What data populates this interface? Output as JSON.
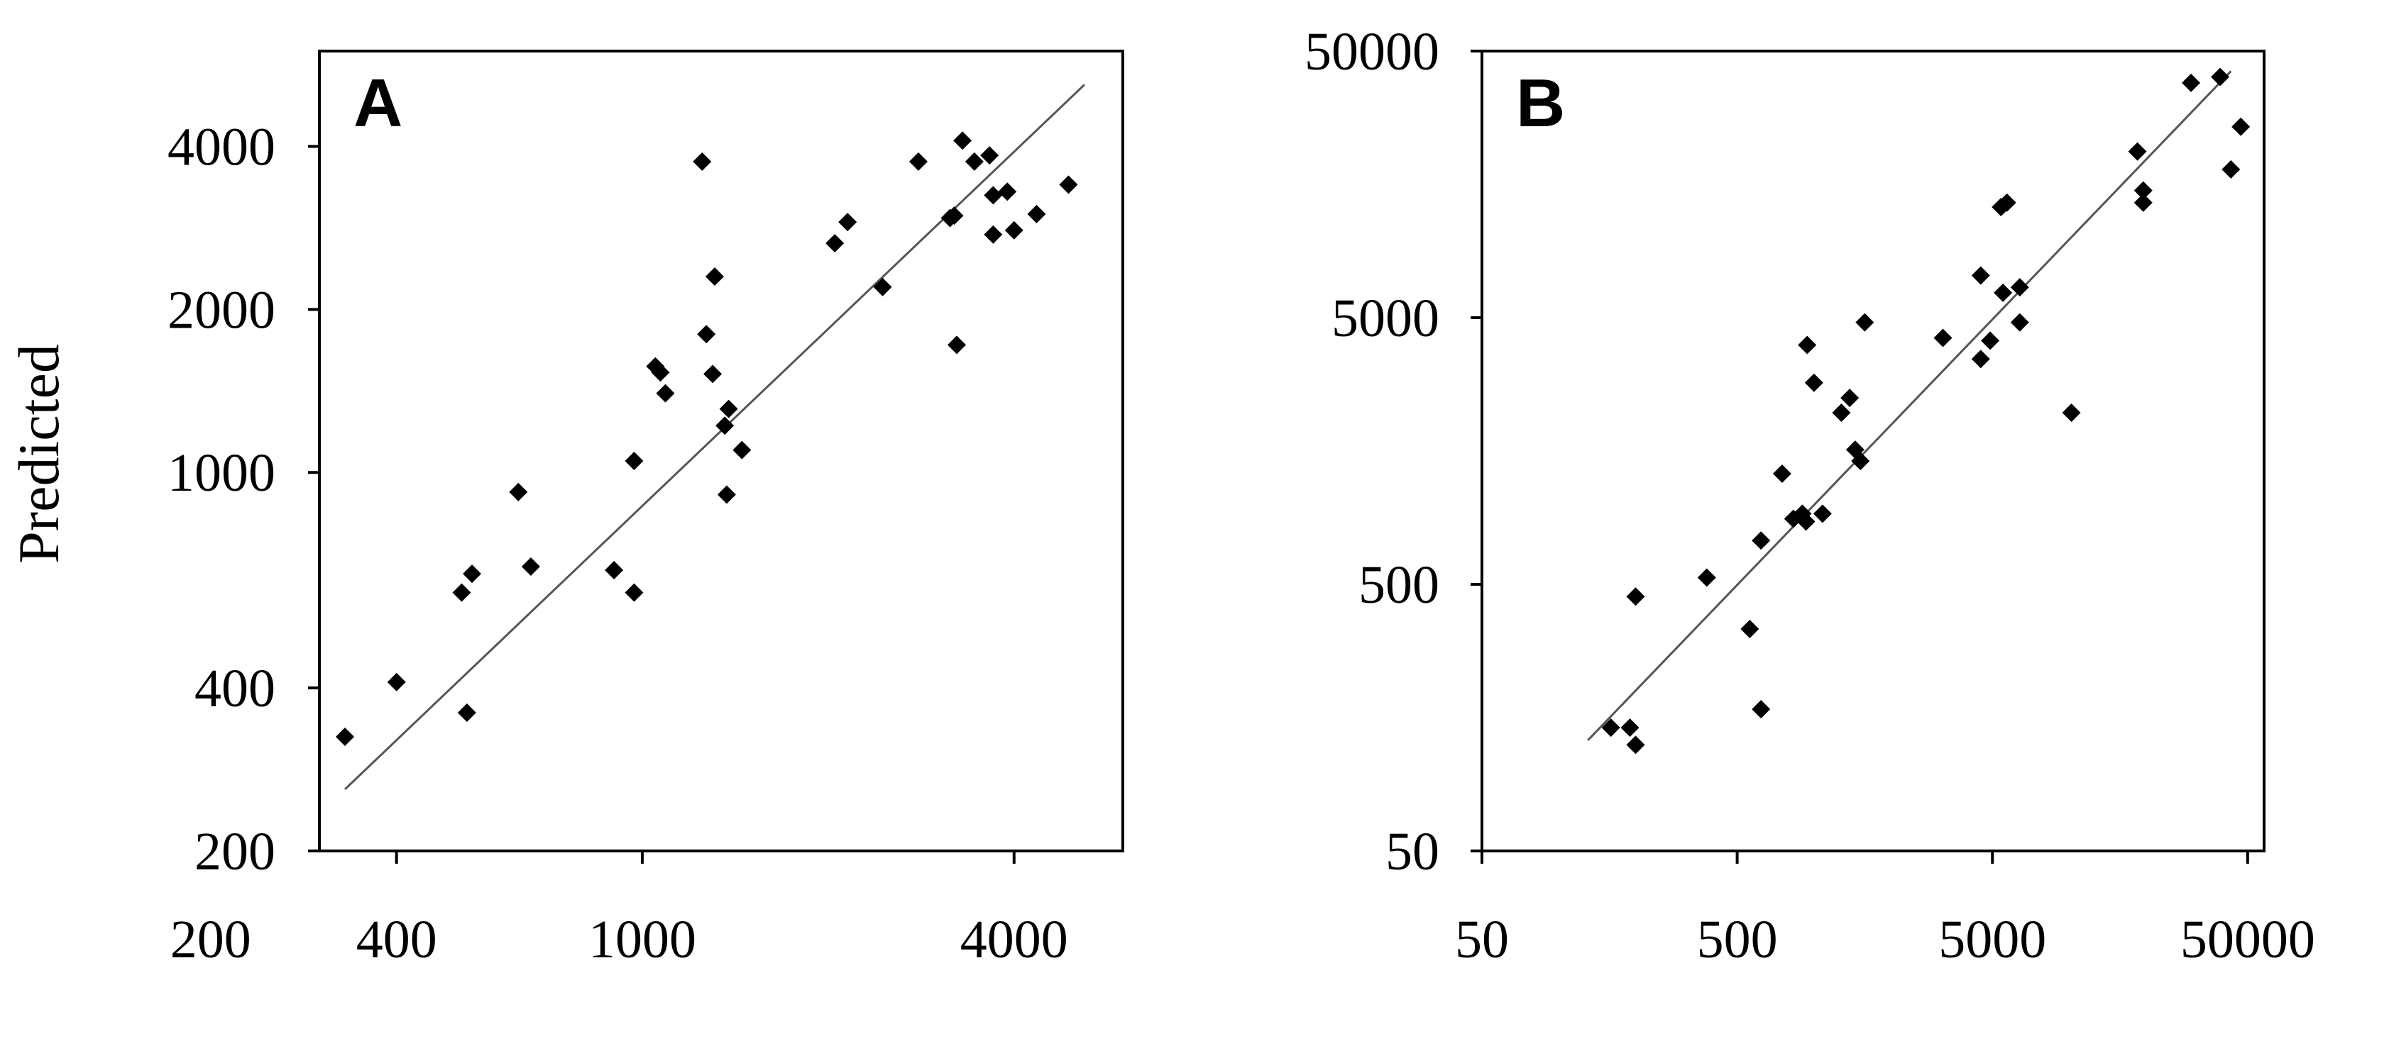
{
  "chart_data": [
    {
      "type": "scatter",
      "panel_label": "A",
      "title": "",
      "xlabel": "",
      "ylabel": "Predicted",
      "log_x": true,
      "log_y": true,
      "xlim": [
        300,
        6000
      ],
      "ylim": [
        200,
        6000
      ],
      "xticks": [
        {
          "v": 200,
          "label": "200"
        },
        {
          "v": 400,
          "label": "400"
        },
        {
          "v": 1000,
          "label": "1000"
        },
        {
          "v": 4000,
          "label": "4000"
        }
      ],
      "yticks": [
        {
          "v": 200,
          "label": "200"
        },
        {
          "v": 400,
          "label": "400"
        },
        {
          "v": 1000,
          "label": "1000"
        },
        {
          "v": 2000,
          "label": "2000"
        },
        {
          "v": 4000,
          "label": "4000"
        }
      ],
      "fit_line": [
        [
          330,
          260
        ],
        [
          5200,
          5200
        ]
      ],
      "points": [
        [
          330,
          325
        ],
        [
          400,
          410
        ],
        [
          510,
          600
        ],
        [
          520,
          360
        ],
        [
          530,
          650
        ],
        [
          630,
          920
        ],
        [
          660,
          670
        ],
        [
          900,
          660
        ],
        [
          970,
          1050
        ],
        [
          970,
          600
        ],
        [
          1050,
          1570
        ],
        [
          1070,
          1530
        ],
        [
          1090,
          1400
        ],
        [
          1250,
          3750
        ],
        [
          1270,
          1800
        ],
        [
          1300,
          1520
        ],
        [
          1310,
          2300
        ],
        [
          1360,
          1220
        ],
        [
          1380,
          1310
        ],
        [
          1370,
          910
        ],
        [
          1450,
          1100
        ],
        [
          2050,
          2650
        ],
        [
          2150,
          2900
        ],
        [
          2450,
          2200
        ],
        [
          2800,
          3750
        ],
        [
          3150,
          2950
        ],
        [
          3200,
          2980
        ],
        [
          3230,
          1720
        ],
        [
          3300,
          4100
        ],
        [
          3450,
          3750
        ],
        [
          3650,
          3850
        ],
        [
          3700,
          3250
        ],
        [
          3700,
          2750
        ],
        [
          3900,
          3300
        ],
        [
          4000,
          2800
        ],
        [
          4350,
          3000
        ],
        [
          4900,
          3400
        ]
      ]
    },
    {
      "type": "scatter",
      "panel_label": "B",
      "title": "",
      "xlabel": "",
      "ylabel": "",
      "log_x": true,
      "log_y": true,
      "xlim": [
        50,
        58000
      ],
      "ylim": [
        50,
        50000
      ],
      "xticks": [
        {
          "v": 50,
          "label": "50"
        },
        {
          "v": 500,
          "label": "500"
        },
        {
          "v": 5000,
          "label": "5000"
        },
        {
          "v": 50000,
          "label": "50000"
        }
      ],
      "yticks": [
        {
          "v": 50,
          "label": "50"
        },
        {
          "v": 500,
          "label": "500"
        },
        {
          "v": 5000,
          "label": "5000"
        },
        {
          "v": 50000,
          "label": "50000"
        }
      ],
      "fit_line": [
        [
          130,
          130
        ],
        [
          43000,
          42000
        ]
      ],
      "points": [
        [
          160,
          145
        ],
        [
          190,
          145
        ],
        [
          200,
          125
        ],
        [
          200,
          450
        ],
        [
          380,
          530
        ],
        [
          560,
          340
        ],
        [
          620,
          730
        ],
        [
          620,
          170
        ],
        [
          750,
          1300
        ],
        [
          830,
          880
        ],
        [
          900,
          920
        ],
        [
          930,
          860
        ],
        [
          940,
          3950
        ],
        [
          1000,
          2850
        ],
        [
          1080,
          920
        ],
        [
          1280,
          2200
        ],
        [
          1380,
          2500
        ],
        [
          1450,
          1600
        ],
        [
          1520,
          1450
        ],
        [
          1580,
          4800
        ],
        [
          3200,
          4200
        ],
        [
          4500,
          3500
        ],
        [
          4500,
          7200
        ],
        [
          4900,
          4100
        ],
        [
          5400,
          13000
        ],
        [
          5500,
          6200
        ],
        [
          5700,
          13500
        ],
        [
          6400,
          6500
        ],
        [
          6400,
          4800
        ],
        [
          10200,
          2200
        ],
        [
          18500,
          21000
        ],
        [
          19500,
          15000
        ],
        [
          19500,
          13500
        ],
        [
          30000,
          38000
        ],
        [
          39000,
          40000
        ],
        [
          43000,
          18000
        ],
        [
          47000,
          26000
        ]
      ]
    }
  ]
}
